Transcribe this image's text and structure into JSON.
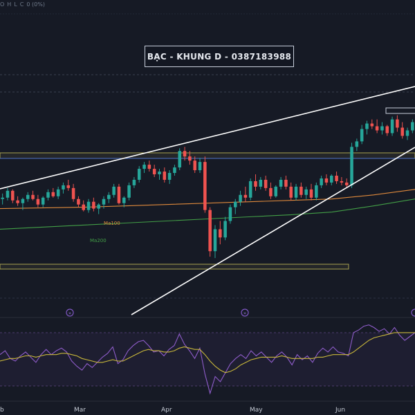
{
  "header": {
    "ohlc": [
      "O",
      "H",
      "L",
      "C",
      "0 (0%)"
    ]
  },
  "title_box": "BẠC - KHUNG D - 0387183988",
  "colors": {
    "background": "#161a25",
    "up": "#26a69a",
    "down": "#ef5350",
    "ma100": "#e08a3c",
    "ma200": "#43a047",
    "rsi": "#8e5cc9",
    "rsi_ma": "#c9b83a",
    "trendline": "#ffffff",
    "zone": "#c9c25a"
  },
  "chart_data": {
    "type": "candlestick",
    "x_labels": [
      "b",
      "Mar",
      "Apr",
      "May",
      "Jun"
    ],
    "moving_averages": [
      {
        "name": "Ma100",
        "values": [
          31.1,
          31.15,
          31.2,
          31.3,
          31.4,
          31.5,
          31.6,
          31.7,
          31.8,
          32.1,
          32.5
        ]
      },
      {
        "name": "Ma200",
        "values": [
          29.6,
          29.75,
          29.9,
          30.05,
          30.2,
          30.35,
          30.5,
          30.65,
          30.85,
          31.3,
          31.8
        ]
      }
    ],
    "candles": [
      [
        31.8,
        32.2,
        31.4,
        31.9
      ],
      [
        31.9,
        32.6,
        31.7,
        32.4
      ],
      [
        32.4,
        32.5,
        31.5,
        31.7
      ],
      [
        31.7,
        32.0,
        31.3,
        31.5
      ],
      [
        31.5,
        31.9,
        31.0,
        31.8
      ],
      [
        31.8,
        32.3,
        31.6,
        32.1
      ],
      [
        32.1,
        32.4,
        31.7,
        31.8
      ],
      [
        31.8,
        32.1,
        31.2,
        31.4
      ],
      [
        31.4,
        32.0,
        31.2,
        31.9
      ],
      [
        31.9,
        32.5,
        31.7,
        32.3
      ],
      [
        32.3,
        32.6,
        31.9,
        32.0
      ],
      [
        32.0,
        32.7,
        31.8,
        32.5
      ],
      [
        32.5,
        33.0,
        32.2,
        32.8
      ],
      [
        32.8,
        33.2,
        32.4,
        32.6
      ],
      [
        32.6,
        32.9,
        31.6,
        31.8
      ],
      [
        31.8,
        32.0,
        31.2,
        31.4
      ],
      [
        31.4,
        31.7,
        30.9,
        31.0
      ],
      [
        31.0,
        31.8,
        30.8,
        31.6
      ],
      [
        31.6,
        31.9,
        30.9,
        31.1
      ],
      [
        31.1,
        31.5,
        30.7,
        31.4
      ],
      [
        31.4,
        32.0,
        31.1,
        31.8
      ],
      [
        31.8,
        32.3,
        31.5,
        32.1
      ],
      [
        32.1,
        32.9,
        31.9,
        32.7
      ],
      [
        32.7,
        32.9,
        31.4,
        31.5
      ],
      [
        31.5,
        32.0,
        31.2,
        31.9
      ],
      [
        31.9,
        33.0,
        31.7,
        32.8
      ],
      [
        32.8,
        33.4,
        32.6,
        33.2
      ],
      [
        33.2,
        34.2,
        33.0,
        34.0
      ],
      [
        34.0,
        34.5,
        33.7,
        34.3
      ],
      [
        34.3,
        34.6,
        33.8,
        34.0
      ],
      [
        34.0,
        34.3,
        33.4,
        33.6
      ],
      [
        33.6,
        34.0,
        33.2,
        33.8
      ],
      [
        33.8,
        34.1,
        33.0,
        33.2
      ],
      [
        33.2,
        33.9,
        32.9,
        33.7
      ],
      [
        33.7,
        34.3,
        33.5,
        34.1
      ],
      [
        34.1,
        35.5,
        33.9,
        35.3
      ],
      [
        35.3,
        35.6,
        34.6,
        34.9
      ],
      [
        34.9,
        35.3,
        34.3,
        34.6
      ],
      [
        34.6,
        34.9,
        33.7,
        33.9
      ],
      [
        33.9,
        34.8,
        33.7,
        34.5
      ],
      [
        34.5,
        34.9,
        30.8,
        31.0
      ],
      [
        31.0,
        31.2,
        27.6,
        28.0
      ],
      [
        28.0,
        29.9,
        27.5,
        29.6
      ],
      [
        29.6,
        30.2,
        28.5,
        29.0
      ],
      [
        29.0,
        30.5,
        28.8,
        30.2
      ],
      [
        30.2,
        31.4,
        30.0,
        31.2
      ],
      [
        31.2,
        31.8,
        30.7,
        31.6
      ],
      [
        31.6,
        32.4,
        31.3,
        32.1
      ],
      [
        32.1,
        32.7,
        31.6,
        31.9
      ],
      [
        31.9,
        33.3,
        31.7,
        33.1
      ],
      [
        33.1,
        33.6,
        32.4,
        32.7
      ],
      [
        32.7,
        33.4,
        32.5,
        33.2
      ],
      [
        33.2,
        33.5,
        32.4,
        32.6
      ],
      [
        32.6,
        33.0,
        31.8,
        32.0
      ],
      [
        32.0,
        32.8,
        31.9,
        32.7
      ],
      [
        32.7,
        33.4,
        32.5,
        33.2
      ],
      [
        33.2,
        33.5,
        32.5,
        32.7
      ],
      [
        32.7,
        33.0,
        31.7,
        31.9
      ],
      [
        31.9,
        32.9,
        31.7,
        32.7
      ],
      [
        32.7,
        33.0,
        31.9,
        32.1
      ],
      [
        32.1,
        32.7,
        31.8,
        32.5
      ],
      [
        32.5,
        32.9,
        31.7,
        31.9
      ],
      [
        31.9,
        33.0,
        31.7,
        32.8
      ],
      [
        32.8,
        33.5,
        32.6,
        33.3
      ],
      [
        33.3,
        33.6,
        32.8,
        33.0
      ],
      [
        33.0,
        33.6,
        32.8,
        33.5
      ],
      [
        33.5,
        33.8,
        32.9,
        33.1
      ],
      [
        33.1,
        33.4,
        32.8,
        33.0
      ],
      [
        33.0,
        33.3,
        32.6,
        32.8
      ],
      [
        32.8,
        35.9,
        32.6,
        35.6
      ],
      [
        35.6,
        36.2,
        35.3,
        36.0
      ],
      [
        36.0,
        37.2,
        35.8,
        36.9
      ],
      [
        36.9,
        37.5,
        36.5,
        37.3
      ],
      [
        37.3,
        37.6,
        36.9,
        37.1
      ],
      [
        37.1,
        37.6,
        36.6,
        36.8
      ],
      [
        36.8,
        37.4,
        36.5,
        37.1
      ],
      [
        37.1,
        37.2,
        36.4,
        36.6
      ],
      [
        36.6,
        37.8,
        36.4,
        37.6
      ],
      [
        37.6,
        37.9,
        36.7,
        37.0
      ],
      [
        37.0,
        37.4,
        36.2,
        36.4
      ],
      [
        36.4,
        37.0,
        36.1,
        36.8
      ],
      [
        36.8,
        37.6,
        36.6,
        37.4
      ]
    ],
    "rsi": [
      55,
      58,
      52,
      50,
      54,
      57,
      53,
      49,
      55,
      59,
      55,
      58,
      60,
      57,
      50,
      46,
      43,
      48,
      45,
      49,
      53,
      56,
      61,
      48,
      51,
      58,
      62,
      65,
      66,
      62,
      57,
      58,
      54,
      59,
      62,
      71,
      63,
      58,
      52,
      60,
      40,
      25,
      38,
      34,
      41,
      48,
      52,
      55,
      52,
      58,
      54,
      57,
      53,
      49,
      54,
      57,
      53,
      47,
      55,
      51,
      54,
      49,
      56,
      60,
      57,
      61,
      57,
      56,
      54,
      72,
      74,
      77,
      78,
      76,
      73,
      75,
      71,
      76,
      70,
      66,
      69,
      72
    ],
    "rsi_ma": [
      50,
      51,
      52,
      52,
      53,
      54,
      54,
      53,
      54,
      55,
      55,
      55,
      56,
      56,
      55,
      54,
      52,
      51,
      50,
      49,
      49,
      50,
      51,
      50,
      50,
      52,
      54,
      56,
      58,
      59,
      58,
      58,
      57,
      57,
      58,
      60,
      61,
      60,
      59,
      59,
      55,
      50,
      46,
      43,
      41,
      42,
      44,
      47,
      49,
      51,
      52,
      53,
      53,
      53,
      53,
      54,
      53,
      52,
      52,
      52,
      52,
      52,
      53,
      53,
      54,
      55,
      55,
      55,
      55,
      57,
      60,
      63,
      66,
      68,
      69,
      70,
      71,
      72,
      72,
      72,
      72,
      72
    ]
  }
}
